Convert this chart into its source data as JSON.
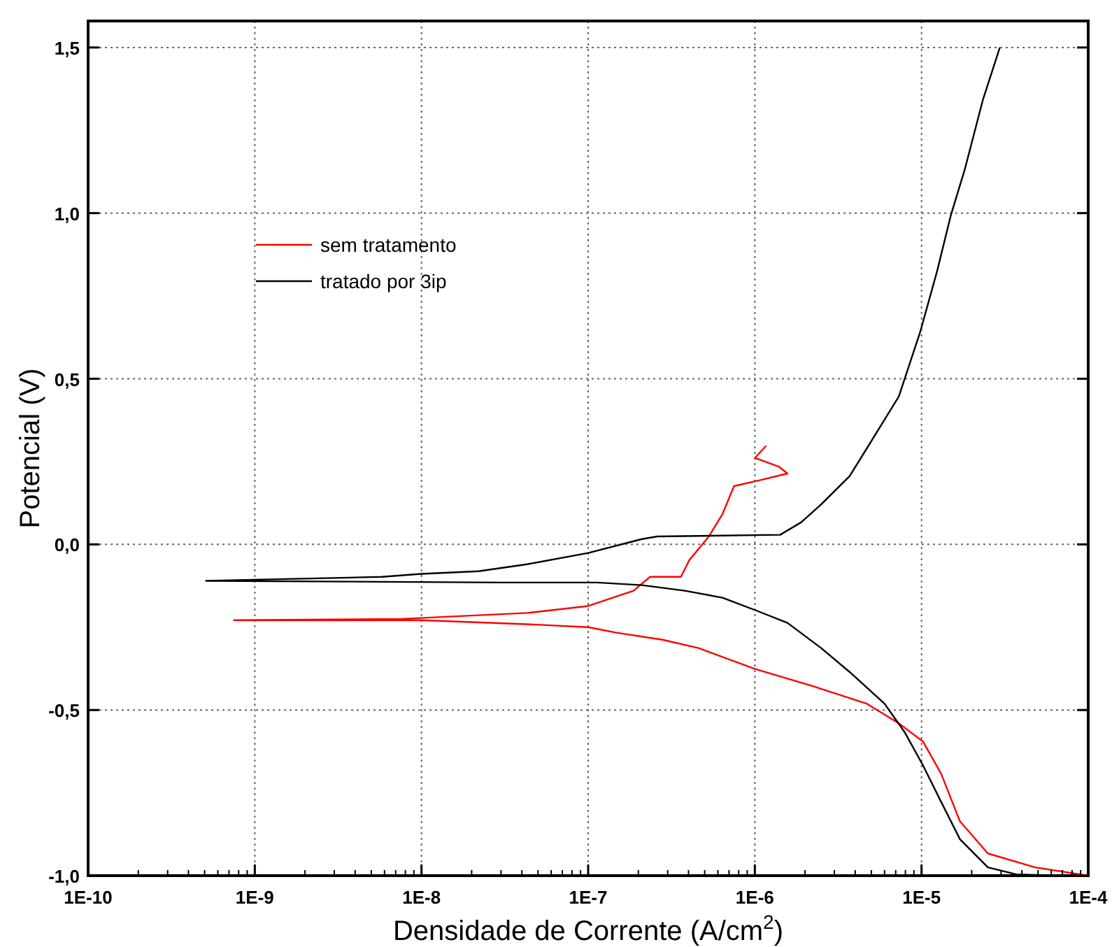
{
  "chart_data": {
    "type": "line",
    "xlabel": "Densidade de Corrente (A/cm$^{2}$)",
    "ylabel": "Potencial (V)",
    "log": "x",
    "grid": true,
    "legend": "top left",
    "line_style": "solid",
    "marker": "none",
    "xlim": [
      1e-10,
      0.0001
    ],
    "xticks": [
      {
        "value": 1e-10,
        "label": "1E-10"
      },
      {
        "value": 1e-09,
        "label": "1E-9"
      },
      {
        "value": 1e-08,
        "label": "1E-8"
      },
      {
        "value": 1e-07,
        "label": "1E-7"
      },
      {
        "value": 1e-06,
        "label": "1E-6"
      },
      {
        "value": 1e-05,
        "label": "1E-5"
      },
      {
        "value": 0.0001,
        "label": "1E-4"
      }
    ],
    "ylim": [
      -1.0,
      1.58
    ],
    "yticks": [
      {
        "value": -1.0,
        "label": "-1,0"
      },
      {
        "value": -0.5,
        "label": "-0,5"
      },
      {
        "value": 0,
        "label": "0,0"
      },
      {
        "value": 0.5,
        "label": "0,5"
      },
      {
        "value": 1.0,
        "label": "1,0"
      },
      {
        "value": 1.5,
        "label": "1,5"
      }
    ],
    "series": [
      {
        "name": "sem tratamento",
        "color": "#ff0000",
        "x": [
          0.0001,
          4.8e-05,
          2.5e-05,
          1.7e-05,
          1.31e-05,
          1.02e-05,
          7.3e-06,
          4.7e-06,
          2.2e-06,
          1e-06,
          4.6e-07,
          2.8e-07,
          1.46e-07,
          1e-07,
          4.3e-08,
          1e-08,
          7.5e-10,
          7.6e-09,
          4.3e-08,
          1e-07,
          1.87e-07,
          2.35e-07,
          3.6e-07,
          4.05e-07,
          5.3e-07,
          6.4e-07,
          7.5e-07,
          1.06e-06,
          1.57e-06,
          1.39e-06,
          1e-06,
          1.17e-06
        ],
        "values": [
          -1.0,
          -0.975,
          -0.933,
          -0.836,
          -0.692,
          -0.595,
          -0.54,
          -0.481,
          -0.427,
          -0.376,
          -0.313,
          -0.288,
          -0.266,
          -0.25,
          -0.241,
          -0.229,
          -0.229,
          -0.225,
          -0.207,
          -0.186,
          -0.14,
          -0.098,
          -0.098,
          -0.047,
          0.024,
          0.092,
          0.176,
          0.193,
          0.214,
          0.235,
          0.261,
          0.298
        ]
      },
      {
        "name": "tratado por 3ip",
        "color": "#000000",
        "x": [
          7e-05,
          3.7e-05,
          2.5e-05,
          1.7e-05,
          1.31e-05,
          1.02e-05,
          7.9e-06,
          6e-06,
          3.7e-06,
          2.5e-06,
          1.57e-06,
          1.06e-06,
          6.4e-07,
          3.8e-07,
          2.1e-07,
          1.13e-07,
          3.1e-08,
          5.1e-10,
          5.8e-09,
          1e-08,
          2.2e-08,
          4.3e-08,
          1e-07,
          2.1e-07,
          2.6e-07,
          1.42e-06,
          1.9e-06,
          2.5e-06,
          3.7e-06,
          4.7e-06,
          7.3e-06,
          9.8e-06,
          1.24e-05,
          1.5e-05,
          1.82e-05,
          2.34e-05,
          2.95e-05
        ],
        "values": [
          -1.0,
          -0.996,
          -0.975,
          -0.89,
          -0.777,
          -0.667,
          -0.566,
          -0.481,
          -0.385,
          -0.313,
          -0.237,
          -0.203,
          -0.161,
          -0.14,
          -0.123,
          -0.115,
          -0.115,
          -0.11,
          -0.098,
          -0.089,
          -0.081,
          -0.06,
          -0.026,
          0.016,
          0.024,
          0.029,
          0.067,
          0.121,
          0.206,
          0.29,
          0.446,
          0.64,
          0.825,
          0.994,
          1.133,
          1.344,
          1.5
        ]
      }
    ]
  }
}
